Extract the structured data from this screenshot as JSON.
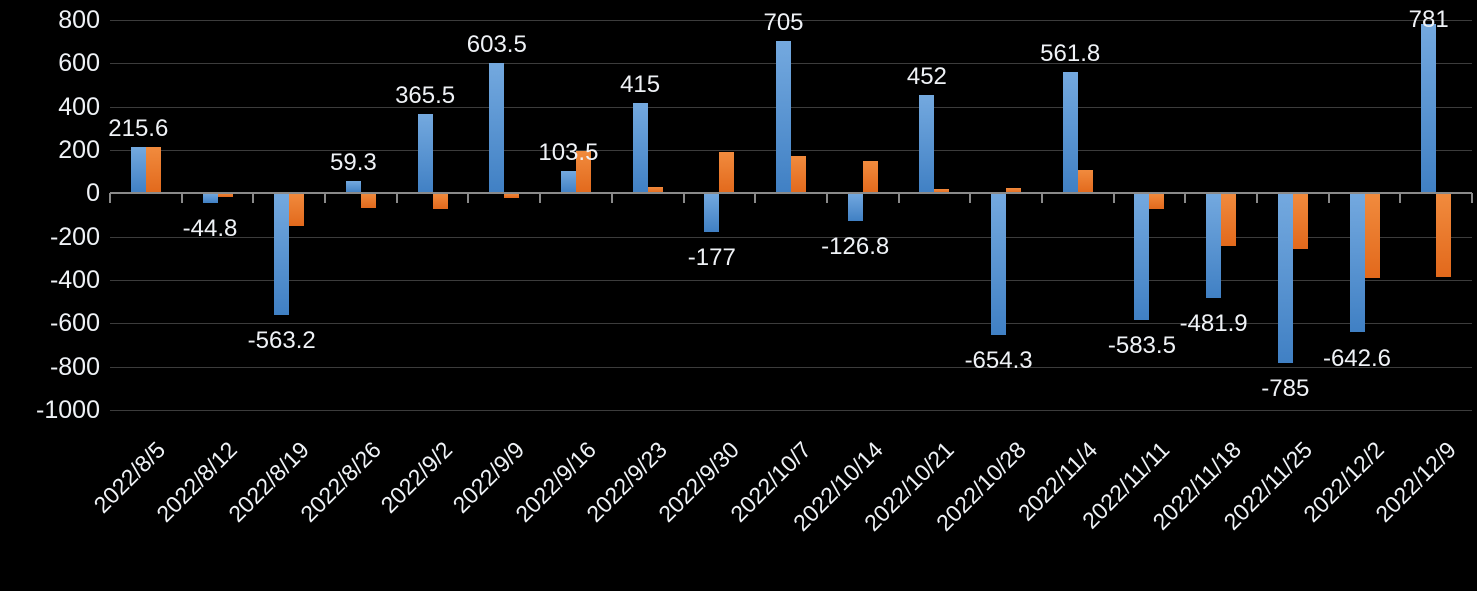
{
  "chart_data": {
    "type": "bar",
    "title": "",
    "legend": "none",
    "grid": true,
    "background": "#000000",
    "categories": [
      "2022/8/5",
      "2022/8/12",
      "2022/8/19",
      "2022/8/26",
      "2022/9/2",
      "2022/9/9",
      "2022/9/16",
      "2022/9/23",
      "2022/9/30",
      "2022/10/7",
      "2022/10/14",
      "2022/10/21",
      "2022/10/28",
      "2022/11/4",
      "2022/11/11",
      "2022/11/18",
      "2022/11/25",
      "2022/12/2",
      "2022/12/9"
    ],
    "series": [
      {
        "name": "series-blue",
        "values": [
          215.6,
          -44.8,
          -563.2,
          59.3,
          365.5,
          603.5,
          103.5,
          415,
          -177,
          705,
          -126.8,
          452,
          -654.3,
          561.8,
          -583.5,
          -481.9,
          -785,
          -642.6,
          781
        ],
        "labeled": true
      },
      {
        "name": "series-orange",
        "values": [
          214,
          -18,
          -150,
          -70,
          -75,
          -20,
          196,
          28,
          190,
          172,
          148,
          18,
          25,
          108,
          -74,
          -244,
          -257,
          -392,
          -386
        ],
        "labeled": false
      }
    ],
    "data_labels": [
      "215.6",
      "-44.8",
      "-563.2",
      "59.3",
      "365.5",
      "603.5",
      "103.5",
      "415",
      "-177",
      "705",
      "-126.8",
      "452",
      "-654.3",
      "561.8",
      "-583.5",
      "-481.9",
      "-785",
      "-642.6",
      "781"
    ],
    "y_axis": {
      "min": -1000,
      "max": 800,
      "step": 200,
      "tick_labels": [
        "800",
        "600",
        "400",
        "200",
        "0",
        "-200",
        "-400",
        "-600",
        "-800",
        "-1000"
      ]
    },
    "x_axis": {
      "rotation_deg": -45
    }
  },
  "colors": {
    "background": "#000000",
    "bar_blue_top": "#74A9DF",
    "bar_blue_bottom": "#4080C4",
    "bar_orange_top": "#F18B3E",
    "bar_orange_bottom": "#E2691C",
    "gridline": "#3C3C3C",
    "axis_line": "#8A8A8A",
    "text": "#EFF2F6"
  }
}
